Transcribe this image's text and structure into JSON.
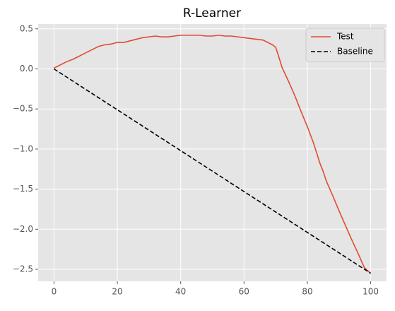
{
  "chart_data": {
    "type": "line",
    "title": "R-Learner",
    "xlim": [
      -5,
      105
    ],
    "xticks": [
      0,
      20,
      40,
      60,
      80,
      100
    ],
    "ylim": [
      -2.65,
      0.56
    ],
    "yticks": [
      0.5,
      {
        "value": 0,
        "label": "0.0"
      },
      {
        "value": -0.5,
        "label": "−0.5"
      },
      {
        "value": -1,
        "label": "−1.0"
      },
      {
        "value": -1.5,
        "label": "−1.5"
      },
      {
        "value": -2,
        "label": "−2.0"
      },
      {
        "value": -2.5,
        "label": "−2.5"
      }
    ],
    "grid": true,
    "legend": "upper right",
    "series": [
      {
        "name": "Test",
        "color": "#e24a33",
        "dash": "solid",
        "x": [
          0,
          2,
          4,
          6,
          8,
          10,
          12,
          14,
          16,
          18,
          20,
          22,
          24,
          26,
          28,
          30,
          32,
          34,
          36,
          38,
          40,
          42,
          44,
          46,
          48,
          50,
          52,
          54,
          56,
          58,
          60,
          62,
          64,
          66,
          68,
          69,
          70,
          71,
          72,
          74,
          76,
          78,
          80,
          82,
          84,
          85,
          86,
          88,
          90,
          92,
          94,
          96,
          98,
          100
        ],
        "values": [
          0.01,
          0.05,
          0.09,
          0.12,
          0.16,
          0.2,
          0.24,
          0.28,
          0.3,
          0.31,
          0.33,
          0.33,
          0.35,
          0.37,
          0.39,
          0.4,
          0.41,
          0.4,
          0.4,
          0.41,
          0.42,
          0.42,
          0.42,
          0.42,
          0.41,
          0.41,
          0.42,
          0.41,
          0.41,
          0.4,
          0.39,
          0.38,
          0.37,
          0.36,
          0.32,
          0.3,
          0.27,
          0.15,
          0.02,
          -0.15,
          -0.33,
          -0.53,
          -0.72,
          -0.93,
          -1.18,
          -1.28,
          -1.4,
          -1.58,
          -1.77,
          -1.95,
          -2.13,
          -2.3,
          -2.48,
          -2.55
        ]
      },
      {
        "name": "Baseline",
        "color": "#000000",
        "dash": "dashed",
        "x": [
          0,
          100
        ],
        "values": [
          0,
          -2.55
        ]
      }
    ]
  }
}
